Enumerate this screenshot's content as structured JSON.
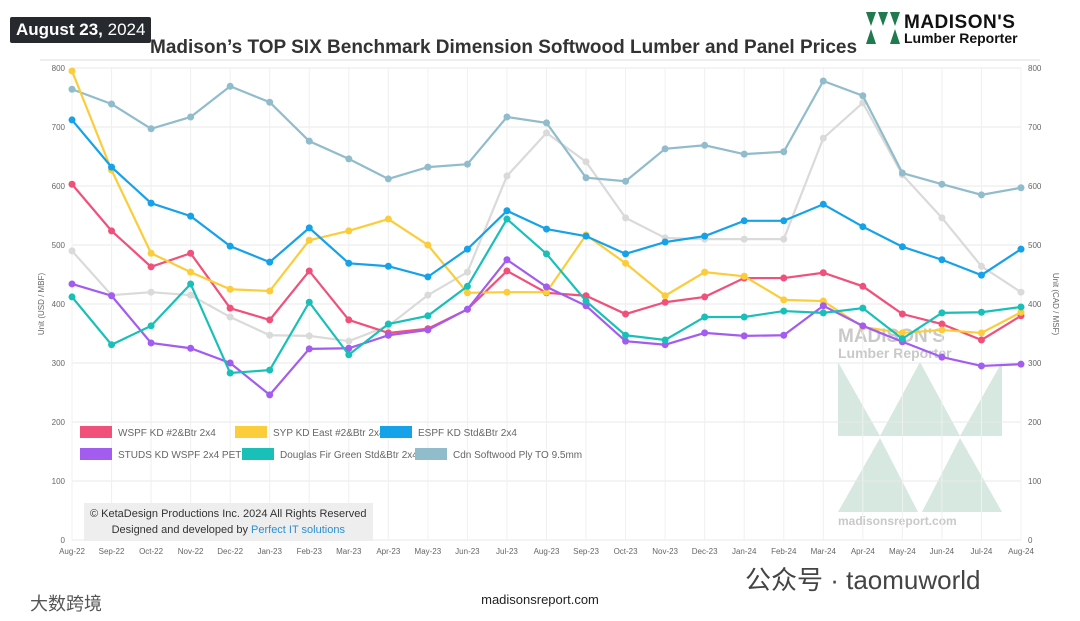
{
  "header": {
    "date_bold": "August 23,",
    "date_year": "2024",
    "title": "Madison’s TOP SIX Benchmark Dimension Softwood Lumber and Panel Prices",
    "logo_line1": "MADISON'S",
    "logo_line2": "Lumber Reporter"
  },
  "watermark": {
    "line1": "MADISON'S",
    "line2": "Lumber Reporter",
    "site": "madisonsreport.com"
  },
  "copyright": {
    "line1": "© KetaDesign Productions Inc. 2024 All Rights Reserved",
    "line2_prefix": "Designed and developed by ",
    "line2_link": "Perfect IT solutions"
  },
  "footer": {
    "site": "madisonsreport.com",
    "wechat": "公众号 · taomuworld",
    "brand": "大数跨境"
  },
  "chart_data": {
    "type": "line",
    "title": "Madison’s TOP SIX Benchmark Dimension Softwood Lumber and Panel Prices",
    "ylabel": "Unit (USD / MBF)",
    "y2label": "Unit (CAD / MSF)",
    "ylim": [
      0,
      800
    ],
    "yticks": [
      0,
      100,
      200,
      300,
      400,
      500,
      600,
      700,
      800
    ],
    "grid": true,
    "legend": "bottom-left",
    "categories": [
      "Aug-22",
      "Sep-22",
      "Oct-22",
      "Nov-22",
      "Dec-22",
      "Jan-23",
      "Feb-23",
      "Mar-23",
      "Apr-23",
      "May-23",
      "Jun-23",
      "Jul-23",
      "Aug-23",
      "Sep-23",
      "Oct-23",
      "Nov-23",
      "Dec-23",
      "Jan-24",
      "Feb-24",
      "Mar-24",
      "Apr-24",
      "May-24",
      "Jun-24",
      "Jul-24",
      "Aug-24"
    ],
    "series": [
      {
        "name": "WSPF KD #2&Btr 2x4",
        "color": "#f0507a",
        "values": [
          603,
          524,
          463,
          486,
          393,
          373,
          456,
          373,
          351,
          358,
          391,
          456,
          419,
          414,
          383,
          403,
          412,
          444,
          444,
          453,
          430,
          383,
          366,
          339,
          380
        ]
      },
      {
        "name": "SYP KD East #2&Btr 2x4",
        "color": "#fbcd3a",
        "values": [
          795,
          627,
          486,
          454,
          425,
          422,
          508,
          524,
          544,
          500,
          419,
          420,
          420,
          517,
          469,
          414,
          454,
          447,
          407,
          405,
          361,
          351,
          356,
          351,
          386
        ]
      },
      {
        "name": "ESPF KD Std&Btr 2x4",
        "color": "#16a2e8",
        "values": [
          712,
          632,
          571,
          549,
          498,
          471,
          529,
          469,
          464,
          446,
          493,
          558,
          527,
          515,
          485,
          505,
          515,
          541,
          541,
          569,
          531,
          497,
          475,
          449,
          493
        ]
      },
      {
        "name": "STUDS KD WSPF 2x4 PET",
        "color": "#a35cf0",
        "values": [
          434,
          414,
          334,
          325,
          300,
          246,
          324,
          325,
          347,
          356,
          391,
          475,
          429,
          397,
          337,
          331,
          351,
          346,
          347,
          397,
          363,
          336,
          310,
          295,
          298
        ]
      },
      {
        "name": "Douglas Fir Green Std&Btr 2x4",
        "color": "#18c0b8",
        "values": [
          412,
          331,
          363,
          434,
          283,
          288,
          403,
          314,
          366,
          380,
          430,
          544,
          485,
          405,
          347,
          339,
          378,
          378,
          388,
          385,
          393,
          341,
          385,
          386,
          395
        ]
      },
      {
        "name": "Cdn Softwood Ply TO 9.5mm",
        "color": "#90bccb",
        "values": [
          764,
          739,
          697,
          717,
          769,
          742,
          676,
          646,
          612,
          632,
          637,
          717,
          707,
          614,
          608,
          663,
          669,
          654,
          658,
          778,
          753,
          622,
          603,
          585,
          597
        ]
      },
      {
        "name": "",
        "color": "#dadada",
        "values": [
          490,
          415,
          420,
          415,
          378,
          347,
          346,
          337,
          363,
          415,
          454,
          617,
          690,
          641,
          546,
          512,
          510,
          510,
          510,
          681,
          741,
          619,
          546,
          464,
          420
        ]
      }
    ]
  }
}
